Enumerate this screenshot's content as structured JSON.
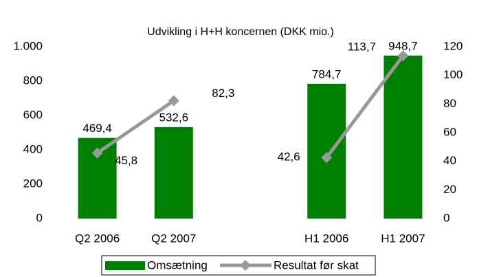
{
  "chart_data": {
    "type": "bar-line",
    "title": "Udvikling i H+H koncernen (DKK mio.)",
    "categories": [
      "Q2 2006",
      "Q2 2007",
      null,
      "H1 2006",
      "H1 2007"
    ],
    "series": [
      {
        "name": "Omsætning",
        "type": "bar",
        "color": "#008000",
        "values": [
          469.4,
          532.6,
          null,
          784.7,
          948.7
        ],
        "value_labels": [
          "469,4",
          "532,6",
          null,
          "784,7",
          "948,7"
        ]
      },
      {
        "name": "Resultat før skat",
        "type": "line",
        "axis": "y2",
        "color": "#999999",
        "values": [
          45.8,
          82.3,
          null,
          42.6,
          113.7
        ],
        "value_labels": [
          "45,8",
          "82,3",
          null,
          "42,6",
          "113,7"
        ]
      }
    ],
    "ylim": [
      0,
      1000
    ],
    "yticks": [
      0,
      200,
      400,
      600,
      800,
      {
        "value": 1000,
        "label": "1.000"
      }
    ],
    "y2lim": [
      0,
      120
    ],
    "y2ticks": [
      0,
      20,
      40,
      60,
      80,
      100,
      120
    ],
    "legend": "bottom"
  }
}
